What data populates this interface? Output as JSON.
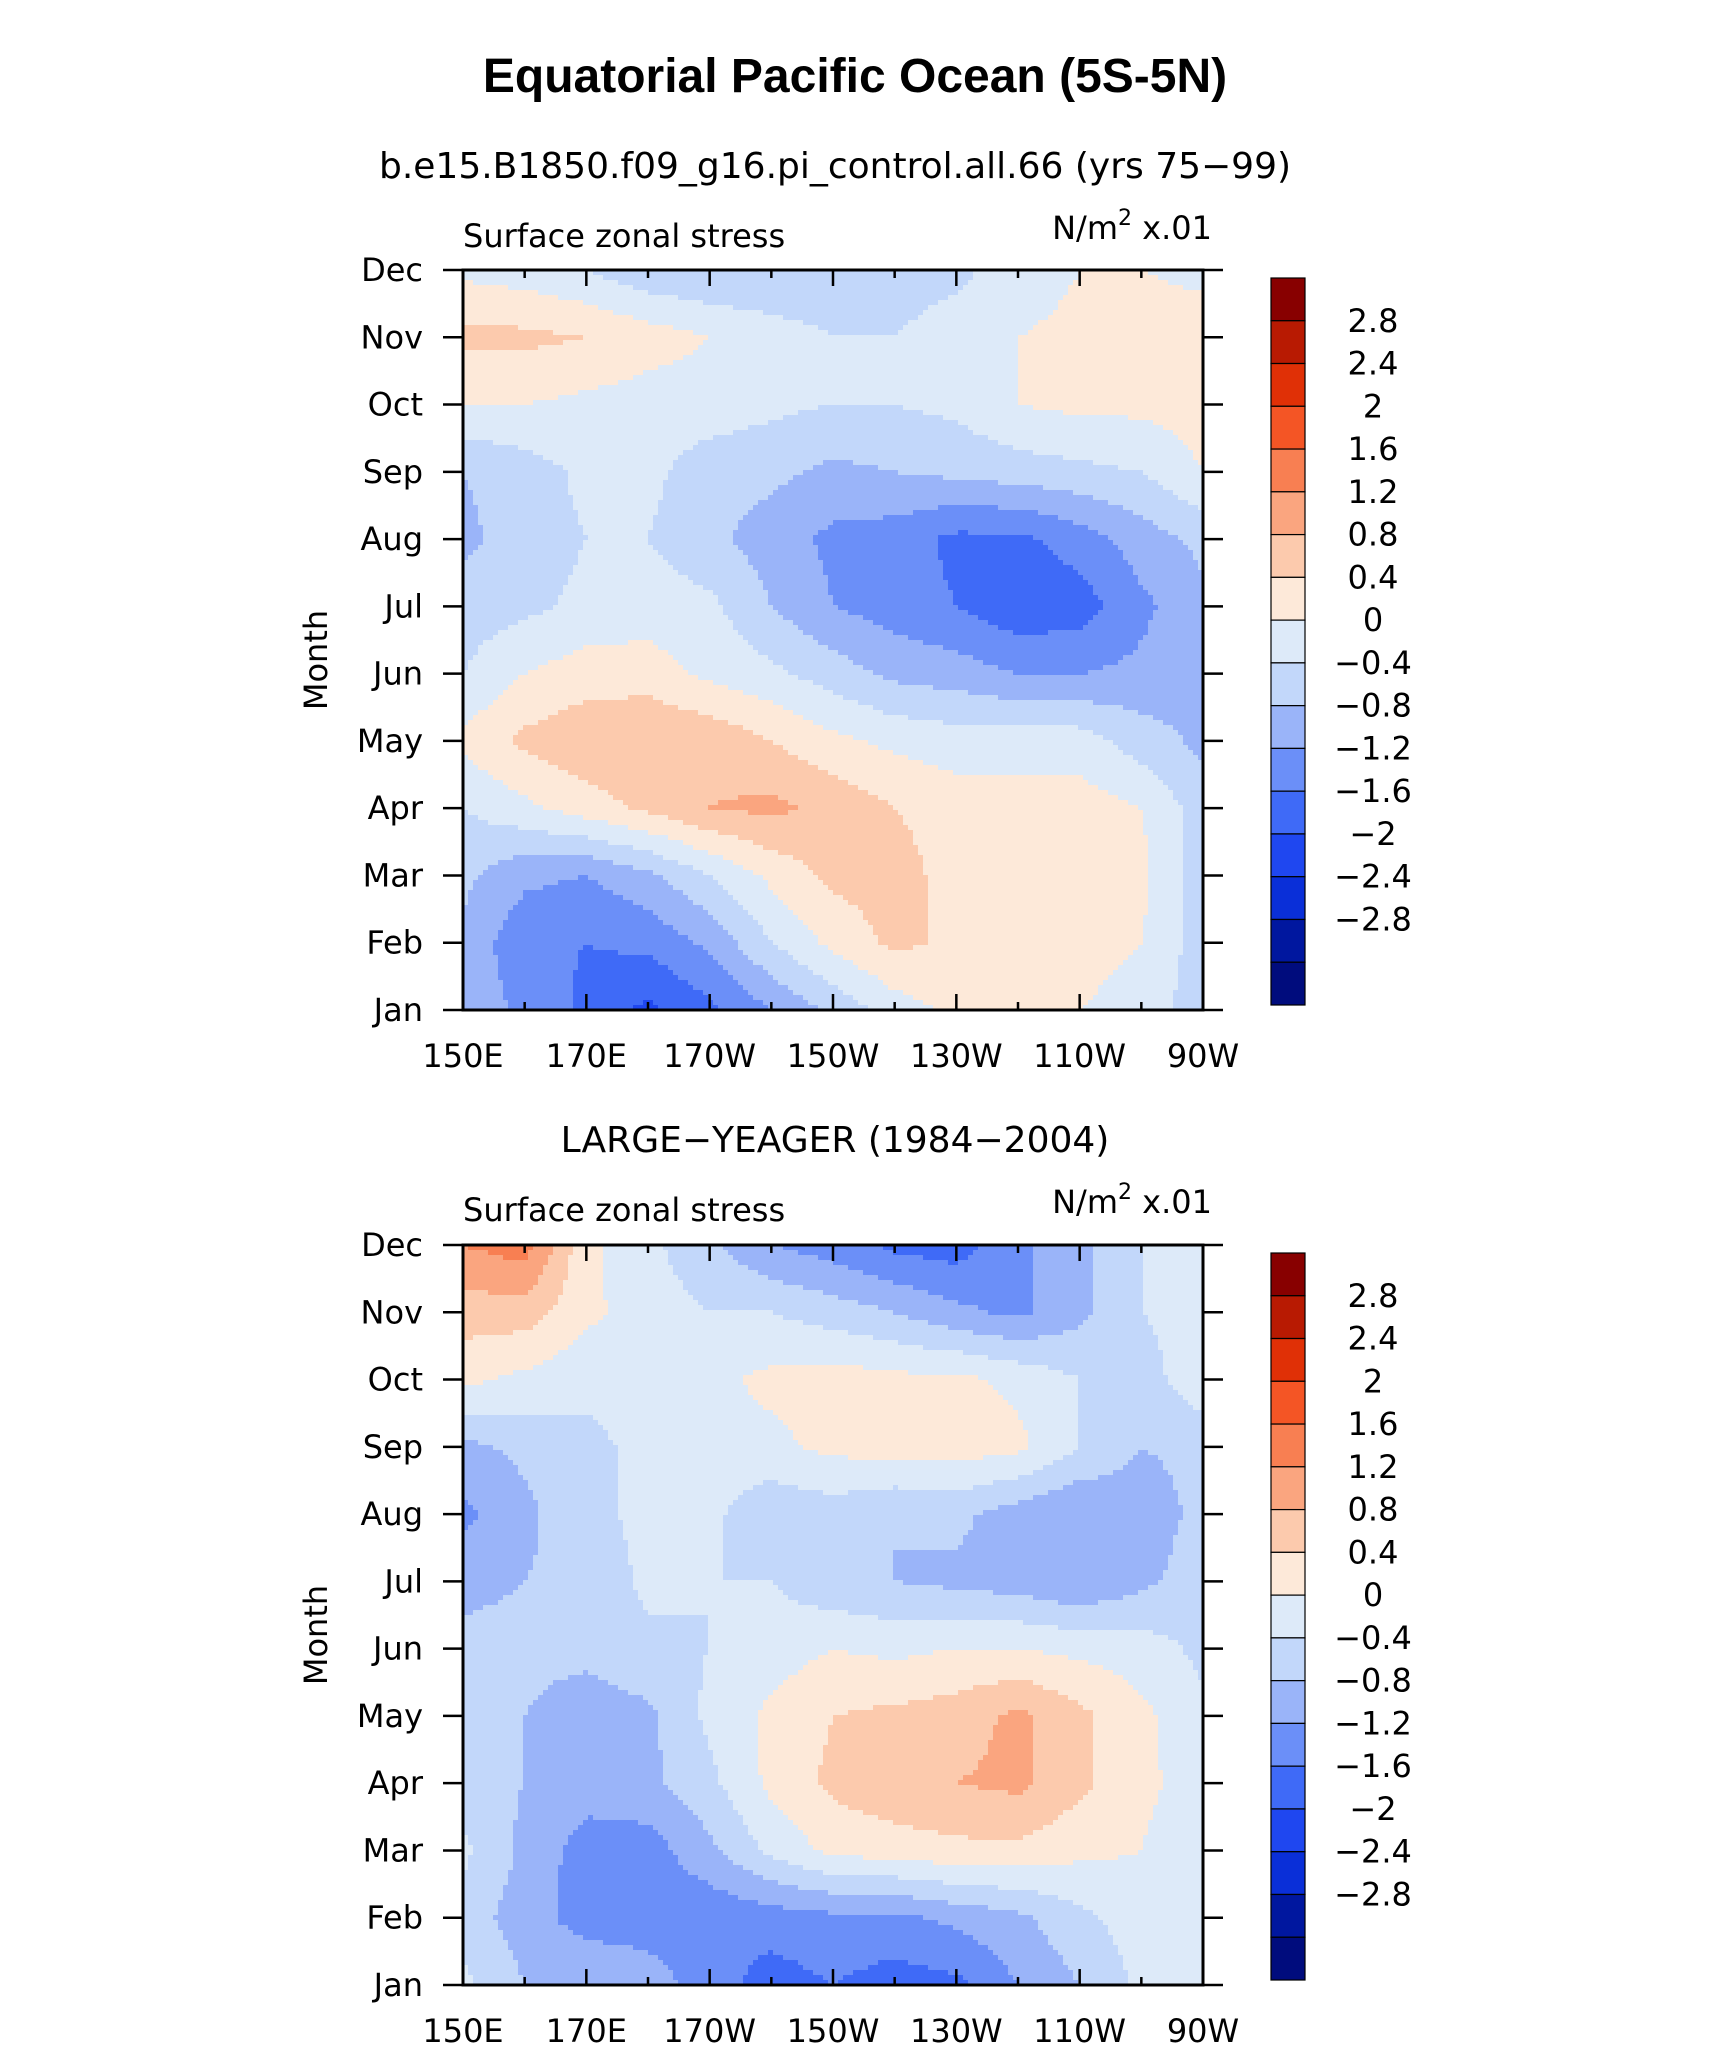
{
  "figure": {
    "title": "Equatorial Pacific Ocean (5S-5N)"
  },
  "colorbar": {
    "levels": [
      -2.8,
      -2.4,
      -2,
      -1.6,
      -1.2,
      -0.8,
      -0.4,
      0,
      0.4,
      0.8,
      1.2,
      1.6,
      2,
      2.4,
      2.8
    ],
    "labels": [
      "2.8",
      "2.4",
      "2",
      "1.6",
      "1.2",
      "0.8",
      "0.4",
      "0",
      "−0.4",
      "−0.8",
      "−1.2",
      "−1.6",
      "−2",
      "−2.4",
      "−2.8"
    ],
    "colors": [
      "#000c7d",
      "#00179f",
      "#0a2fd8",
      "#1f47f0",
      "#3f6af7",
      "#6b8ff8",
      "#9ab4f9",
      "#c2d7fa",
      "#ddeaf9",
      "#fde9d9",
      "#fccaad",
      "#faa57f",
      "#f87f52",
      "#f45525",
      "#e03006",
      "#b81a02",
      "#880000"
    ]
  },
  "chart_data": [
    {
      "type": "heatmap",
      "title": "b.e15.B1850.f09_g16.pi_control.all.66 (yrs 75−99)",
      "left_string": "Surface zonal stress",
      "units": "N/m",
      "units_sup": "2",
      "units_scale": " x.01",
      "xlabel": "",
      "ylabel": "Month",
      "x_ticks": [
        "150E",
        "170E",
        "170W",
        "150W",
        "130W",
        "110W",
        "90W"
      ],
      "y_ticks": [
        "Jan",
        "Feb",
        "Mar",
        "Apr",
        "May",
        "Jun",
        "Jul",
        "Aug",
        "Sep",
        "Oct",
        "Nov",
        "Dec"
      ],
      "x_range": [
        150,
        270
      ],
      "y_range": [
        1,
        12
      ],
      "columns_lon": [
        150,
        160,
        170,
        180,
        190,
        200,
        210,
        220,
        230,
        240,
        250,
        260,
        270
      ],
      "values": [
        [
          -0.5,
          -0.9,
          -1.3,
          -1.7,
          -1.3,
          -0.8,
          -0.3,
          0.2,
          0.5,
          0.5,
          0.4,
          0.3,
          -0.3
        ],
        [
          -0.5,
          -1.1,
          -1.2,
          -1.1,
          -0.7,
          0.0,
          0.5,
          0.9,
          0.7,
          0.5,
          0.5,
          0.4,
          -0.2
        ],
        [
          -0.3,
          -0.7,
          -0.8,
          -0.5,
          0.0,
          0.5,
          0.9,
          1.0,
          0.6,
          0.5,
          0.6,
          0.5,
          -0.2
        ],
        [
          0.0,
          0.3,
          0.6,
          0.9,
          1.2,
          1.3,
          1.1,
          0.8,
          0.6,
          0.6,
          0.6,
          0.4,
          -0.2
        ],
        [
          0.5,
          0.9,
          1.1,
          1.2,
          1.1,
          0.8,
          0.5,
          0.3,
          0.2,
          0.2,
          0.2,
          -0.2,
          -0.5
        ],
        [
          0.0,
          0.4,
          0.6,
          0.6,
          0.3,
          0.1,
          -0.2,
          -0.5,
          -0.6,
          -0.8,
          -0.8,
          -0.7,
          -0.5
        ],
        [
          -0.2,
          -0.1,
          0.1,
          0.2,
          0.1,
          -0.4,
          -0.8,
          -1.0,
          -1.2,
          -1.5,
          -1.4,
          -0.9,
          -0.5
        ],
        [
          -0.5,
          -0.2,
          0.0,
          0.0,
          -0.3,
          -0.6,
          -0.9,
          -1.0,
          -1.3,
          -1.3,
          -1.0,
          -0.6,
          -0.3
        ],
        [
          -0.4,
          -0.2,
          0.1,
          0.1,
          -0.2,
          -0.3,
          -0.5,
          -0.4,
          -0.3,
          -0.2,
          -0.1,
          0.0,
          0.4
        ],
        [
          0.4,
          0.4,
          0.3,
          0.2,
          0.2,
          0.1,
          0.0,
          0.0,
          0.1,
          0.4,
          0.5,
          0.5,
          0.6
        ],
        [
          0.9,
          0.9,
          0.8,
          0.6,
          0.4,
          0.2,
          0.0,
          0.0,
          0.2,
          0.4,
          0.5,
          0.6,
          0.6
        ],
        [
          0.3,
          0.2,
          0.0,
          -0.3,
          -0.4,
          -0.4,
          -0.3,
          -0.2,
          -0.1,
          0.2,
          0.4,
          0.4,
          0.3
        ]
      ]
    },
    {
      "type": "heatmap",
      "title": "LARGE−YEAGER (1984−2004)",
      "left_string": "Surface zonal stress",
      "units": "N/m",
      "units_sup": "2",
      "units_scale": " x.01",
      "xlabel": "",
      "ylabel": "Month",
      "x_ticks": [
        "150E",
        "170E",
        "170W",
        "150W",
        "130W",
        "110W",
        "90W"
      ],
      "y_ticks": [
        "Jan",
        "Feb",
        "Mar",
        "Apr",
        "May",
        "Jun",
        "Jul",
        "Aug",
        "Sep",
        "Oct",
        "Nov",
        "Dec"
      ],
      "x_range": [
        150,
        270
      ],
      "y_range": [
        1,
        12
      ],
      "columns_lon": [
        150,
        160,
        170,
        180,
        190,
        200,
        210,
        220,
        230,
        240,
        250,
        260,
        270
      ],
      "values": [
        [
          0.1,
          -0.4,
          -0.4,
          -0.6,
          -1.0,
          -1.4,
          -1.2,
          -1.4,
          -1.3,
          -0.8,
          -0.4,
          0.1,
          0.2
        ],
        [
          -0.2,
          -0.6,
          -1.0,
          -1.0,
          -1.1,
          -1.0,
          -0.9,
          -0.9,
          -0.7,
          -0.5,
          -0.1,
          0.2,
          0.3
        ],
        [
          0.1,
          -0.5,
          -1.0,
          -1.0,
          -0.5,
          0.1,
          0.5,
          0.6,
          0.7,
          0.7,
          0.5,
          0.4,
          0.1
        ],
        [
          -0.3,
          -0.4,
          -0.6,
          -0.5,
          -0.1,
          0.5,
          0.9,
          1.1,
          1.2,
          1.3,
          0.9,
          0.5,
          0.2
        ],
        [
          -0.3,
          -0.4,
          -0.6,
          -0.5,
          0.1,
          0.5,
          0.8,
          0.9,
          1.0,
          1.3,
          0.9,
          0.5,
          0.1
        ],
        [
          -0.3,
          -0.3,
          -0.3,
          -0.1,
          0.0,
          0.2,
          0.4,
          0.3,
          0.4,
          0.4,
          0.3,
          0.2,
          -0.1
        ],
        [
          -0.5,
          -0.4,
          -0.3,
          0.1,
          0.0,
          0.0,
          -0.3,
          -0.4,
          -0.5,
          -0.6,
          -0.8,
          -0.5,
          -0.2
        ],
        [
          -0.9,
          -0.5,
          -0.1,
          0.1,
          0.1,
          -0.3,
          -0.2,
          -0.4,
          -0.3,
          -0.6,
          -0.8,
          -0.6,
          -0.3
        ],
        [
          -0.5,
          -0.3,
          -0.1,
          0.1,
          0.2,
          0.3,
          0.5,
          0.6,
          0.6,
          0.5,
          0.0,
          -0.4,
          -0.3
        ],
        [
          0.5,
          0.3,
          0.1,
          0.2,
          0.3,
          0.5,
          0.6,
          0.5,
          0.5,
          0.3,
          0.0,
          -0.2,
          0.3
        ],
        [
          1.0,
          1.0,
          0.5,
          0.2,
          0.0,
          0.0,
          -0.2,
          -0.4,
          -0.7,
          -0.9,
          -0.5,
          0.0,
          0.2
        ],
        [
          1.6,
          1.8,
          0.5,
          0.1,
          -0.3,
          -0.8,
          -1.0,
          -1.3,
          -1.4,
          -0.9,
          -0.5,
          0.0,
          0.2
        ]
      ]
    }
  ]
}
